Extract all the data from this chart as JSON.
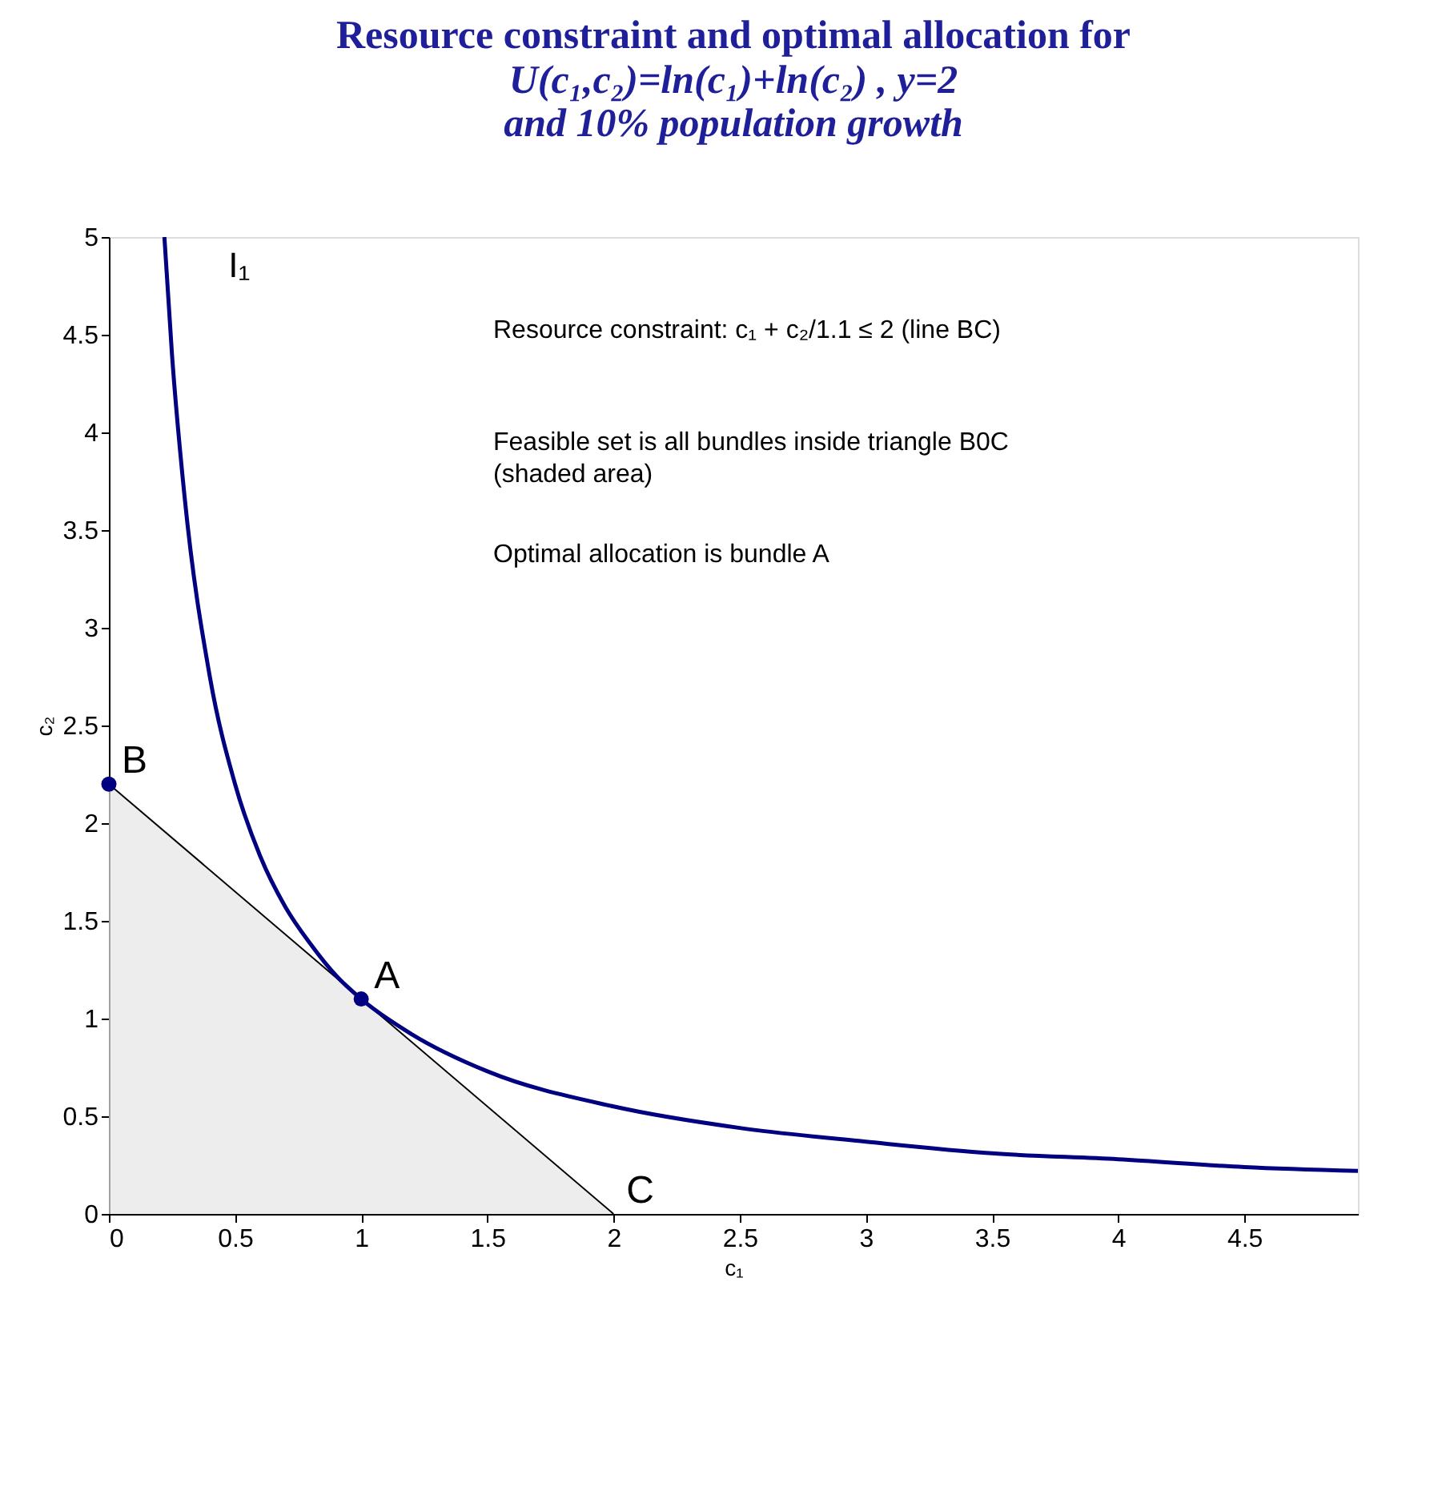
{
  "chart_data": {
    "type": "line",
    "title": "Resource constraint and optimal allocation for",
    "subtitle": "U(c₁,c₂)=ln(c₁)+ln(c₂) , y=2\nand 10% population growth",
    "xlabel": "c₁",
    "ylabel": "c₂",
    "xlim": [
      0,
      4.95
    ],
    "ylim": [
      0,
      5
    ],
    "xticks": [
      0,
      0.5,
      1,
      1.5,
      2,
      2.5,
      3,
      3.5,
      4,
      4.5
    ],
    "yticks": [
      0,
      0.5,
      1,
      1.5,
      2,
      2.5,
      3,
      3.5,
      4,
      4.5,
      5
    ],
    "grid": false,
    "legend": false,
    "series": [
      {
        "type": "area",
        "color": "#000000",
        "x": [
          0,
          2
        ],
        "values": [
          2.2,
          0
        ]
      },
      {
        "name": "I₁",
        "color": "#000080",
        "x": [
          0.22,
          0.25,
          0.3,
          0.4,
          0.5,
          0.6,
          0.7,
          0.8,
          0.9,
          1,
          1.2,
          1.5,
          2,
          2.5,
          3,
          3.5,
          4,
          4.5,
          4.95
        ],
        "values": [
          5.0,
          4.4,
          3.67,
          2.75,
          2.2,
          1.83,
          1.57,
          1.38,
          1.22,
          1.1,
          0.92,
          0.73,
          0.55,
          0.44,
          0.37,
          0.31,
          0.28,
          0.24,
          0.22
        ]
      },
      {
        "type": "scatter",
        "color": "#000080",
        "x": [
          0,
          1
        ],
        "values": [
          2.2,
          1.1
        ],
        "marker": "circle"
      }
    ],
    "annotations": [
      {
        "text": "B",
        "x": 0,
        "y": 2.2
      },
      {
        "text": "A",
        "x": 1,
        "y": 1.1
      },
      {
        "text": "C",
        "x": 2,
        "y": 0
      },
      "Resource constraint:  c₁ + c₂/1.1 ≤  2  (line BC)",
      "Feasible set is all bundles inside triangle B0C\n(shaded area)",
      "Optimal allocation is bundle A"
    ]
  }
}
